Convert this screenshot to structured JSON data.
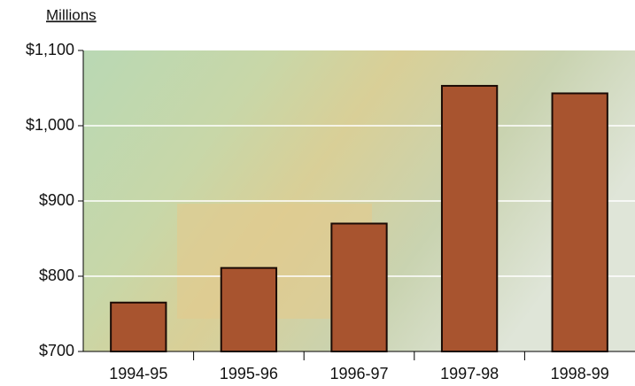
{
  "chart_data": {
    "type": "bar",
    "y_label": "Millions",
    "categories": [
      "1994-95",
      "1995-96",
      "1996-97",
      "1997-98",
      "1998-99"
    ],
    "values": [
      765,
      811,
      870,
      1053,
      1043
    ],
    "color": "#a8542f",
    "ylim": [
      700,
      1100
    ],
    "yticks": [
      {
        "value": 700,
        "label": "$700"
      },
      {
        "value": 800,
        "label": "$800"
      },
      {
        "value": 900,
        "label": "$900"
      },
      {
        "value": 1000,
        "label": "$1,000"
      },
      {
        "value": 1100,
        "label": "$1,100"
      }
    ],
    "grid": true
  }
}
